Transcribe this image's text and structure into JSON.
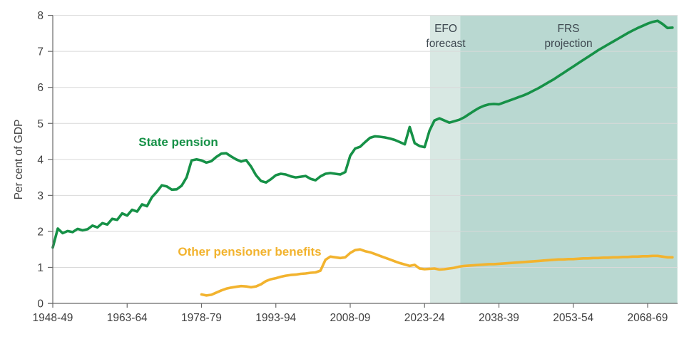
{
  "chart_data": {
    "type": "line",
    "title": "",
    "ylabel": "Per cent of GDP",
    "grid": true,
    "legend": "inline-labels",
    "x_axis": {
      "min_year": 1948,
      "right_edge_year": 2074,
      "tick_years": [
        1948,
        1963,
        1978,
        1993,
        2008,
        2023,
        2038,
        2053,
        2068
      ],
      "tick_labels": [
        "1948-49",
        "1963-64",
        "1978-79",
        "1993-94",
        "2008-09",
        "2023-24",
        "2038-39",
        "2053-54",
        "2068-69"
      ]
    },
    "y_axis": {
      "min": 0,
      "max": 8,
      "tick_step": 1,
      "tick_labels": [
        "0",
        "1",
        "2",
        "3",
        "4",
        "5",
        "6",
        "7",
        "8"
      ]
    },
    "bands": [
      {
        "name": "efo-forecast-band",
        "label_line1": "EFO",
        "label_line2": "forecast",
        "from_year": 2024.1,
        "to_year": 2030.2,
        "color": "#d8e8e3"
      },
      {
        "name": "frs-projection-band",
        "label_line1": "FRS",
        "label_line2": "projection",
        "from_year": 2030.2,
        "to_year": 2074,
        "color": "#b9d8d1"
      }
    ],
    "series": [
      {
        "name": "State pension",
        "color": "#169147",
        "points": [
          [
            1948,
            1.55
          ],
          [
            1949,
            2.08
          ],
          [
            1950,
            1.95
          ],
          [
            1951,
            2.01
          ],
          [
            1952,
            1.98
          ],
          [
            1953,
            2.07
          ],
          [
            1954,
            2.03
          ],
          [
            1955,
            2.06
          ],
          [
            1956,
            2.16
          ],
          [
            1957,
            2.11
          ],
          [
            1958,
            2.23
          ],
          [
            1959,
            2.19
          ],
          [
            1960,
            2.35
          ],
          [
            1961,
            2.32
          ],
          [
            1962,
            2.5
          ],
          [
            1963,
            2.44
          ],
          [
            1964,
            2.6
          ],
          [
            1965,
            2.55
          ],
          [
            1966,
            2.75
          ],
          [
            1967,
            2.7
          ],
          [
            1968,
            2.95
          ],
          [
            1969,
            3.1
          ],
          [
            1970,
            3.28
          ],
          [
            1971,
            3.25
          ],
          [
            1972,
            3.16
          ],
          [
            1973,
            3.17
          ],
          [
            1974,
            3.27
          ],
          [
            1975,
            3.5
          ],
          [
            1976,
            3.97
          ],
          [
            1977,
            4.0
          ],
          [
            1978,
            3.97
          ],
          [
            1979,
            3.91
          ],
          [
            1980,
            3.95
          ],
          [
            1981,
            4.07
          ],
          [
            1982,
            4.16
          ],
          [
            1983,
            4.17
          ],
          [
            1984,
            4.08
          ],
          [
            1985,
            4.0
          ],
          [
            1986,
            3.94
          ],
          [
            1987,
            3.98
          ],
          [
            1988,
            3.8
          ],
          [
            1989,
            3.56
          ],
          [
            1990,
            3.4
          ],
          [
            1991,
            3.36
          ],
          [
            1992,
            3.45
          ],
          [
            1993,
            3.56
          ],
          [
            1994,
            3.6
          ],
          [
            1995,
            3.58
          ],
          [
            1996,
            3.53
          ],
          [
            1997,
            3.5
          ],
          [
            1998,
            3.52
          ],
          [
            1999,
            3.54
          ],
          [
            2000,
            3.46
          ],
          [
            2001,
            3.42
          ],
          [
            2002,
            3.53
          ],
          [
            2003,
            3.6
          ],
          [
            2004,
            3.62
          ],
          [
            2005,
            3.6
          ],
          [
            2006,
            3.58
          ],
          [
            2007,
            3.65
          ],
          [
            2008,
            4.1
          ],
          [
            2009,
            4.3
          ],
          [
            2010,
            4.35
          ],
          [
            2011,
            4.48
          ],
          [
            2012,
            4.6
          ],
          [
            2013,
            4.64
          ],
          [
            2014,
            4.63
          ],
          [
            2015,
            4.61
          ],
          [
            2016,
            4.58
          ],
          [
            2017,
            4.54
          ],
          [
            2018,
            4.48
          ],
          [
            2019,
            4.42
          ],
          [
            2020,
            4.9
          ],
          [
            2021,
            4.45
          ],
          [
            2022,
            4.37
          ],
          [
            2023,
            4.34
          ],
          [
            2024,
            4.8
          ],
          [
            2025,
            5.08
          ],
          [
            2026,
            5.14
          ],
          [
            2027,
            5.08
          ],
          [
            2028,
            5.02
          ],
          [
            2029,
            5.06
          ],
          [
            2030,
            5.1
          ],
          [
            2031,
            5.17
          ],
          [
            2032,
            5.26
          ],
          [
            2033,
            5.35
          ],
          [
            2034,
            5.43
          ],
          [
            2035,
            5.49
          ],
          [
            2036,
            5.53
          ],
          [
            2037,
            5.54
          ],
          [
            2038,
            5.53
          ],
          [
            2039,
            5.58
          ],
          [
            2040,
            5.63
          ],
          [
            2041,
            5.68
          ],
          [
            2042,
            5.73
          ],
          [
            2043,
            5.78
          ],
          [
            2044,
            5.84
          ],
          [
            2045,
            5.91
          ],
          [
            2046,
            5.98
          ],
          [
            2047,
            6.06
          ],
          [
            2048,
            6.14
          ],
          [
            2049,
            6.22
          ],
          [
            2050,
            6.31
          ],
          [
            2051,
            6.4
          ],
          [
            2052,
            6.49
          ],
          [
            2053,
            6.58
          ],
          [
            2054,
            6.67
          ],
          [
            2055,
            6.76
          ],
          [
            2056,
            6.85
          ],
          [
            2057,
            6.94
          ],
          [
            2058,
            7.03
          ],
          [
            2059,
            7.11
          ],
          [
            2060,
            7.19
          ],
          [
            2061,
            7.27
          ],
          [
            2062,
            7.35
          ],
          [
            2063,
            7.43
          ],
          [
            2064,
            7.51
          ],
          [
            2065,
            7.58
          ],
          [
            2066,
            7.65
          ],
          [
            2067,
            7.71
          ],
          [
            2068,
            7.77
          ],
          [
            2069,
            7.82
          ],
          [
            2070,
            7.85
          ],
          [
            2071,
            7.76
          ],
          [
            2072,
            7.65
          ],
          [
            2073,
            7.66
          ]
        ]
      },
      {
        "name": "Other pensioner benefits",
        "color": "#f2b32e",
        "points": [
          [
            1978,
            0.25
          ],
          [
            1979,
            0.22
          ],
          [
            1980,
            0.24
          ],
          [
            1981,
            0.3
          ],
          [
            1982,
            0.36
          ],
          [
            1983,
            0.41
          ],
          [
            1984,
            0.44
          ],
          [
            1985,
            0.46
          ],
          [
            1986,
            0.48
          ],
          [
            1987,
            0.47
          ],
          [
            1988,
            0.45
          ],
          [
            1989,
            0.47
          ],
          [
            1990,
            0.53
          ],
          [
            1991,
            0.62
          ],
          [
            1992,
            0.67
          ],
          [
            1993,
            0.7
          ],
          [
            1994,
            0.74
          ],
          [
            1995,
            0.77
          ],
          [
            1996,
            0.79
          ],
          [
            1997,
            0.8
          ],
          [
            1998,
            0.82
          ],
          [
            1999,
            0.83
          ],
          [
            2000,
            0.85
          ],
          [
            2001,
            0.86
          ],
          [
            2002,
            0.91
          ],
          [
            2003,
            1.21
          ],
          [
            2004,
            1.3
          ],
          [
            2005,
            1.28
          ],
          [
            2006,
            1.26
          ],
          [
            2007,
            1.28
          ],
          [
            2008,
            1.4
          ],
          [
            2009,
            1.48
          ],
          [
            2010,
            1.5
          ],
          [
            2011,
            1.45
          ],
          [
            2012,
            1.42
          ],
          [
            2013,
            1.37
          ],
          [
            2014,
            1.32
          ],
          [
            2015,
            1.27
          ],
          [
            2016,
            1.22
          ],
          [
            2017,
            1.17
          ],
          [
            2018,
            1.12
          ],
          [
            2019,
            1.08
          ],
          [
            2020,
            1.04
          ],
          [
            2021,
            1.07
          ],
          [
            2022,
            0.97
          ],
          [
            2023,
            0.95
          ],
          [
            2024,
            0.96
          ],
          [
            2025,
            0.97
          ],
          [
            2026,
            0.94
          ],
          [
            2027,
            0.95
          ],
          [
            2028,
            0.97
          ],
          [
            2029,
            0.99
          ],
          [
            2030,
            1.02
          ],
          [
            2031,
            1.04
          ],
          [
            2032,
            1.05
          ],
          [
            2033,
            1.06
          ],
          [
            2034,
            1.07
          ],
          [
            2035,
            1.08
          ],
          [
            2036,
            1.09
          ],
          [
            2037,
            1.09
          ],
          [
            2038,
            1.1
          ],
          [
            2039,
            1.11
          ],
          [
            2040,
            1.12
          ],
          [
            2041,
            1.13
          ],
          [
            2042,
            1.14
          ],
          [
            2043,
            1.15
          ],
          [
            2044,
            1.16
          ],
          [
            2045,
            1.17
          ],
          [
            2046,
            1.18
          ],
          [
            2047,
            1.19
          ],
          [
            2048,
            1.2
          ],
          [
            2049,
            1.21
          ],
          [
            2050,
            1.22
          ],
          [
            2051,
            1.22
          ],
          [
            2052,
            1.23
          ],
          [
            2053,
            1.23
          ],
          [
            2054,
            1.24
          ],
          [
            2055,
            1.25
          ],
          [
            2056,
            1.25
          ],
          [
            2057,
            1.26
          ],
          [
            2058,
            1.26
          ],
          [
            2059,
            1.27
          ],
          [
            2060,
            1.27
          ],
          [
            2061,
            1.28
          ],
          [
            2062,
            1.28
          ],
          [
            2063,
            1.29
          ],
          [
            2064,
            1.29
          ],
          [
            2065,
            1.3
          ],
          [
            2066,
            1.3
          ],
          [
            2067,
            1.31
          ],
          [
            2068,
            1.31
          ],
          [
            2069,
            1.32
          ],
          [
            2070,
            1.32
          ],
          [
            2071,
            1.3
          ],
          [
            2072,
            1.28
          ],
          [
            2073,
            1.28
          ]
        ]
      }
    ]
  },
  "annotations": {
    "state_pension_label": "State pension",
    "other_benefits_label": "Other pensioner benefits",
    "efo_line1": "EFO",
    "efo_line2": "forecast",
    "frs_line1": "FRS",
    "frs_line2": "projection",
    "y_axis_label": "Per cent of GDP"
  },
  "colors": {
    "state_pension_line": "#169147",
    "other_benefits_line": "#f2b32e",
    "efo_band": "#d8e8e3",
    "frs_band": "#b9d8d1",
    "grid": "#d9d9d9",
    "axis": "#6a6a6a",
    "tick_text": "#404040",
    "band_text": "#3e4850",
    "background": "#ffffff"
  }
}
